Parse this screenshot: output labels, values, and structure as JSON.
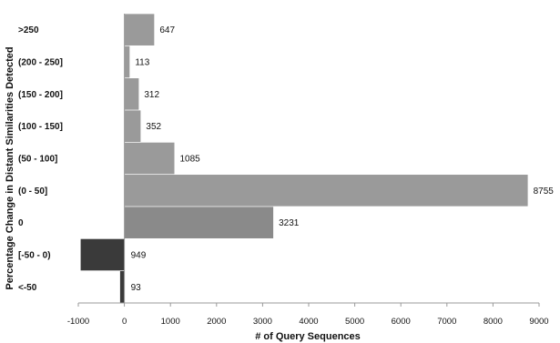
{
  "chart_data": {
    "type": "bar",
    "orientation": "horizontal",
    "title": "",
    "xlabel": "# of Query Sequences",
    "ylabel": "Percentage Change in Distant  Similarities Detected",
    "categories": [
      ">250",
      "(200 - 250]",
      "(150 - 200]",
      "(100 - 150]",
      "(50 - 100]",
      "(0 - 50]",
      "0",
      "[-50 - 0)",
      "<-50"
    ],
    "values": [
      647,
      113,
      312,
      352,
      1085,
      8755,
      3231,
      -949,
      -93
    ],
    "data_labels": [
      "647",
      "113",
      "312",
      "352",
      "1085",
      "8755",
      "3231",
      "949",
      "93"
    ],
    "xlim": [
      -1000,
      9000
    ],
    "xticks": [
      -1000,
      0,
      1000,
      2000,
      3000,
      4000,
      5000,
      6000,
      7000,
      8000,
      9000
    ],
    "xtick_labels": [
      "-1000",
      "0",
      "1000",
      "2000",
      "3000",
      "4000",
      "5000",
      "6000",
      "7000",
      "8000",
      "9000"
    ],
    "grid": false,
    "legend": "none"
  },
  "style": {
    "positive_bar_color": "#9a9a9a",
    "zero_bar_color": "#8a8a8a",
    "negative_bar_color": "#3a3a3a",
    "axis_color": "#9a9a9a"
  }
}
